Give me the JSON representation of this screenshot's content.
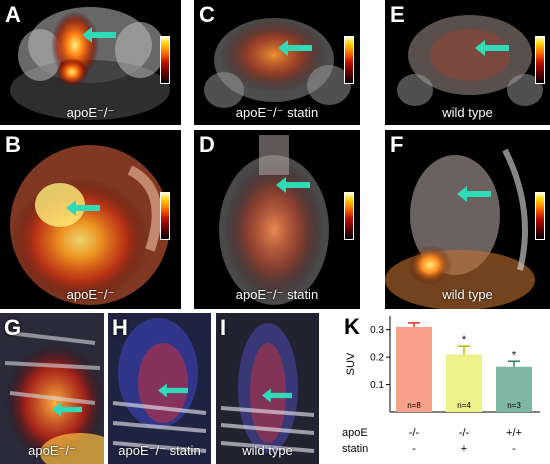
{
  "panels": {
    "A": {
      "letter": "A",
      "caption": "apoE⁻/⁻"
    },
    "B": {
      "letter": "B",
      "caption": "apoE⁻/⁻"
    },
    "C": {
      "letter": "C",
      "caption": "apoE⁻/⁻ statin"
    },
    "D": {
      "letter": "D",
      "caption": "apoE⁻/⁻ statin"
    },
    "E": {
      "letter": "E",
      "caption": "wild type"
    },
    "F": {
      "letter": "F",
      "caption": "wild type"
    },
    "G": {
      "letter": "G",
      "caption": "apoE⁻/⁻"
    },
    "H": {
      "letter": "H",
      "caption": "apoE⁻/⁻ statin"
    },
    "I": {
      "letter": "I",
      "caption": "wild type"
    },
    "K": {
      "letter": "K"
    }
  },
  "colors": {
    "arrow": "#30d9b8",
    "bar_apoe": "#f7a08a",
    "bar_statin": "#eef08a",
    "bar_wt": "#7eb8a4",
    "errorbar_apoe": "#e0301e",
    "errorbar_statin": "#c8b400",
    "errorbar_wt": "#2e7a64"
  },
  "chart_data": {
    "type": "bar",
    "ylabel": "SUV",
    "ylim": [
      0,
      0.35
    ],
    "yticks": [
      "0.1",
      "0.2",
      "0.3"
    ],
    "yticks_values": [
      0.1,
      0.2,
      0.3
    ],
    "categories": [
      "apoE -/- statin -",
      "apoE -/- statin +",
      "apoE +/+ statin -"
    ],
    "values": [
      0.31,
      0.21,
      0.165
    ],
    "errors": [
      0.015,
      0.03,
      0.02
    ],
    "n_labels": [
      "n=8",
      "n=4",
      "n=3"
    ],
    "significance": [
      "",
      "*",
      "*"
    ],
    "row_labels": [
      "apoE",
      "statin"
    ],
    "apoe_values": [
      "-/-",
      "-/-",
      "+/+"
    ],
    "statin_values": [
      "-",
      "+",
      "-"
    ]
  }
}
